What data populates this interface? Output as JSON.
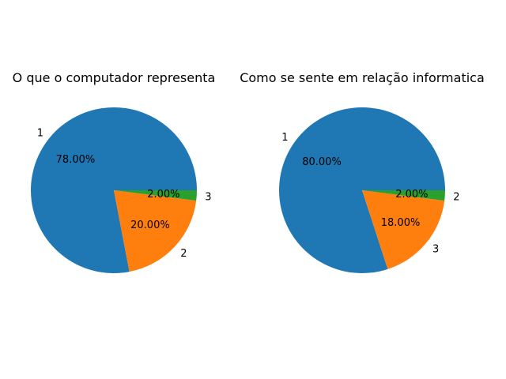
{
  "chart_data": [
    {
      "type": "pie",
      "title": "O que o computador representa",
      "slices": [
        {
          "label": "1",
          "value": 78.0,
          "pct_text": "78.00%",
          "color": "#1f77b4"
        },
        {
          "label": "2",
          "value": 20.0,
          "pct_text": "20.00%",
          "color": "#ff7f0e"
        },
        {
          "label": "3",
          "value": 2.0,
          "pct_text": "2.00%",
          "color": "#2ca02c"
        }
      ]
    },
    {
      "type": "pie",
      "title": "Como se sente em relação informatica",
      "slices": [
        {
          "label": "1",
          "value": 80.0,
          "pct_text": "80.00%",
          "color": "#1f77b4"
        },
        {
          "label": "3",
          "value": 18.0,
          "pct_text": "18.00%",
          "color": "#ff7f0e"
        },
        {
          "label": "2",
          "value": 2.0,
          "pct_text": "2.00%",
          "color": "#2ca02c"
        }
      ]
    }
  ]
}
